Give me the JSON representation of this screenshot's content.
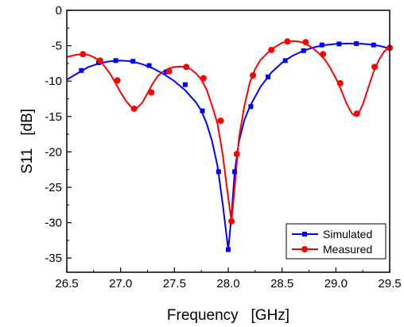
{
  "chart_data": {
    "type": "line",
    "title": "",
    "xlabel": "Frequency   [GHz]",
    "ylabel": "S11   [dB]",
    "xlim": [
      26.5,
      29.5
    ],
    "ylim": [
      -37,
      0
    ],
    "x_ticks": [
      26.5,
      27.0,
      27.5,
      28.0,
      28.5,
      29.0,
      29.5
    ],
    "x_tick_labels": [
      "26.5",
      "27.0",
      "27.5",
      "28.0",
      "28.5",
      "29.0",
      "29.5"
    ],
    "y_ticks": [
      0,
      -5,
      -10,
      -15,
      -20,
      -25,
      -30,
      -35
    ],
    "y_tick_labels": [
      "0",
      "-5",
      "-10",
      "-15",
      "-20",
      "-25",
      "-30",
      "-35"
    ],
    "grid": false,
    "legend_position": "bottom-right",
    "series": [
      {
        "name": "Simulated",
        "color": "#0000ff",
        "marker": "square",
        "curve": [
          [
            26.5,
            -9.8
          ],
          [
            26.6,
            -8.9
          ],
          [
            26.7,
            -8.0
          ],
          [
            26.8,
            -7.5
          ],
          [
            26.9,
            -7.2
          ],
          [
            27.0,
            -7.1
          ],
          [
            27.1,
            -7.2
          ],
          [
            27.2,
            -7.6
          ],
          [
            27.3,
            -8.2
          ],
          [
            27.4,
            -9.0
          ],
          [
            27.5,
            -10.0
          ],
          [
            27.6,
            -11.3
          ],
          [
            27.7,
            -13.0
          ],
          [
            27.75,
            -14.2
          ],
          [
            27.8,
            -16.0
          ],
          [
            27.85,
            -18.5
          ],
          [
            27.9,
            -22.0
          ],
          [
            27.95,
            -27.5
          ],
          [
            28.0,
            -33.8
          ],
          [
            28.03,
            -29.0
          ],
          [
            28.06,
            -22.8
          ],
          [
            28.1,
            -18.5
          ],
          [
            28.15,
            -15.5
          ],
          [
            28.2,
            -13.6
          ],
          [
            28.3,
            -10.8
          ],
          [
            28.4,
            -8.8
          ],
          [
            28.5,
            -7.4
          ],
          [
            28.6,
            -6.4
          ],
          [
            28.7,
            -5.7
          ],
          [
            28.8,
            -5.2
          ],
          [
            28.9,
            -4.9
          ],
          [
            29.0,
            -4.75
          ],
          [
            29.1,
            -4.7
          ],
          [
            29.2,
            -4.7
          ],
          [
            29.3,
            -4.8
          ],
          [
            29.4,
            -5.0
          ],
          [
            29.5,
            -5.4
          ]
        ],
        "markers": [
          [
            26.635,
            -8.5
          ],
          [
            26.795,
            -7.4
          ],
          [
            26.955,
            -7.1
          ],
          [
            27.115,
            -7.2
          ],
          [
            27.265,
            -7.8
          ],
          [
            27.425,
            -8.7
          ],
          [
            27.6,
            -10.5
          ],
          [
            27.76,
            -14.2
          ],
          [
            27.91,
            -22.8
          ],
          [
            28.0,
            -33.8
          ],
          [
            28.06,
            -22.8
          ],
          [
            28.21,
            -13.6
          ],
          [
            28.37,
            -9.4
          ],
          [
            28.53,
            -7.1
          ],
          [
            28.7,
            -5.7
          ],
          [
            28.87,
            -4.9
          ],
          [
            29.03,
            -4.75
          ],
          [
            29.19,
            -4.7
          ],
          [
            29.35,
            -4.9
          ]
        ]
      },
      {
        "name": "Measured",
        "color": "#ff0000",
        "marker": "circle",
        "curve": [
          [
            26.5,
            -6.6
          ],
          [
            26.55,
            -6.4
          ],
          [
            26.6,
            -6.25
          ],
          [
            26.65,
            -6.2
          ],
          [
            26.7,
            -6.3
          ],
          [
            26.75,
            -6.6
          ],
          [
            26.8,
            -7.1
          ],
          [
            26.85,
            -7.9
          ],
          [
            26.9,
            -8.9
          ],
          [
            26.95,
            -10.2
          ],
          [
            27.0,
            -11.6
          ],
          [
            27.05,
            -12.8
          ],
          [
            27.1,
            -13.7
          ],
          [
            27.125,
            -13.9
          ],
          [
            27.15,
            -13.8
          ],
          [
            27.2,
            -13.1
          ],
          [
            27.25,
            -11.7
          ],
          [
            27.3,
            -10.3
          ],
          [
            27.35,
            -9.2
          ],
          [
            27.4,
            -8.6
          ],
          [
            27.45,
            -8.2
          ],
          [
            27.5,
            -8.0
          ],
          [
            27.55,
            -7.95
          ],
          [
            27.6,
            -8.0
          ],
          [
            27.65,
            -8.3
          ],
          [
            27.7,
            -8.9
          ],
          [
            27.75,
            -9.8
          ],
          [
            27.8,
            -11.2
          ],
          [
            27.85,
            -13.5
          ],
          [
            27.9,
            -16.0
          ],
          [
            27.95,
            -20.5
          ],
          [
            28.0,
            -26.5
          ],
          [
            28.03,
            -29.8
          ],
          [
            28.06,
            -25.0
          ],
          [
            28.1,
            -18.0
          ],
          [
            28.15,
            -13.5
          ],
          [
            28.2,
            -10.2
          ],
          [
            28.25,
            -8.3
          ],
          [
            28.3,
            -7.0
          ],
          [
            28.4,
            -5.5
          ],
          [
            28.5,
            -4.6
          ],
          [
            28.55,
            -4.4
          ],
          [
            28.6,
            -4.35
          ],
          [
            28.65,
            -4.4
          ],
          [
            28.7,
            -4.6
          ],
          [
            28.75,
            -5.0
          ],
          [
            28.8,
            -5.5
          ],
          [
            28.85,
            -6.2
          ],
          [
            28.9,
            -7.0
          ],
          [
            28.95,
            -8.2
          ],
          [
            29.0,
            -9.6
          ],
          [
            29.05,
            -11.3
          ],
          [
            29.1,
            -13.2
          ],
          [
            29.15,
            -14.6
          ],
          [
            29.18,
            -14.9
          ],
          [
            29.21,
            -14.6
          ],
          [
            29.25,
            -13.3
          ],
          [
            29.3,
            -11.0
          ],
          [
            29.35,
            -8.7
          ],
          [
            29.4,
            -7.0
          ],
          [
            29.45,
            -5.8
          ],
          [
            29.5,
            -5.1
          ]
        ],
        "markers": [
          [
            26.65,
            -6.2
          ],
          [
            26.81,
            -7.1
          ],
          [
            26.97,
            -9.9
          ],
          [
            27.125,
            -13.9
          ],
          [
            27.285,
            -11.6
          ],
          [
            27.45,
            -8.6
          ],
          [
            27.61,
            -8.0
          ],
          [
            27.77,
            -9.6
          ],
          [
            27.93,
            -15.6
          ],
          [
            28.03,
            -29.8
          ],
          [
            28.08,
            -20.3
          ],
          [
            28.23,
            -9.2
          ],
          [
            28.4,
            -5.6
          ],
          [
            28.55,
            -4.4
          ],
          [
            28.72,
            -4.5
          ],
          [
            28.88,
            -6.2
          ],
          [
            29.04,
            -10.3
          ],
          [
            29.195,
            -14.6
          ],
          [
            29.36,
            -8.0
          ],
          [
            29.5,
            -5.3
          ]
        ]
      }
    ]
  }
}
